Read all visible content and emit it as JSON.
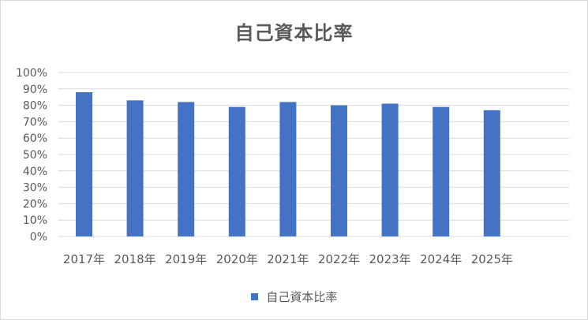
{
  "chart_data": {
    "type": "bar",
    "title": "自己資本比率",
    "categories": [
      "2017年",
      "2018年",
      "2019年",
      "2020年",
      "2021年",
      "2022年",
      "2023年",
      "2024年",
      "2025年"
    ],
    "series": [
      {
        "name": "自己資本比率",
        "values": [
          88,
          83,
          82,
          79,
          82,
          80,
          81,
          79,
          77
        ],
        "color": "#4472c4"
      }
    ],
    "y_ticks": [
      "0%",
      "10%",
      "20%",
      "30%",
      "40%",
      "50%",
      "60%",
      "70%",
      "80%",
      "90%",
      "100%"
    ],
    "ylim": [
      0,
      100
    ],
    "y_unit": "%",
    "grid": true,
    "legend_position": "bottom",
    "colors": {
      "bar": "#4472c4",
      "grid": "#d9d9d9",
      "text": "#595959"
    }
  }
}
